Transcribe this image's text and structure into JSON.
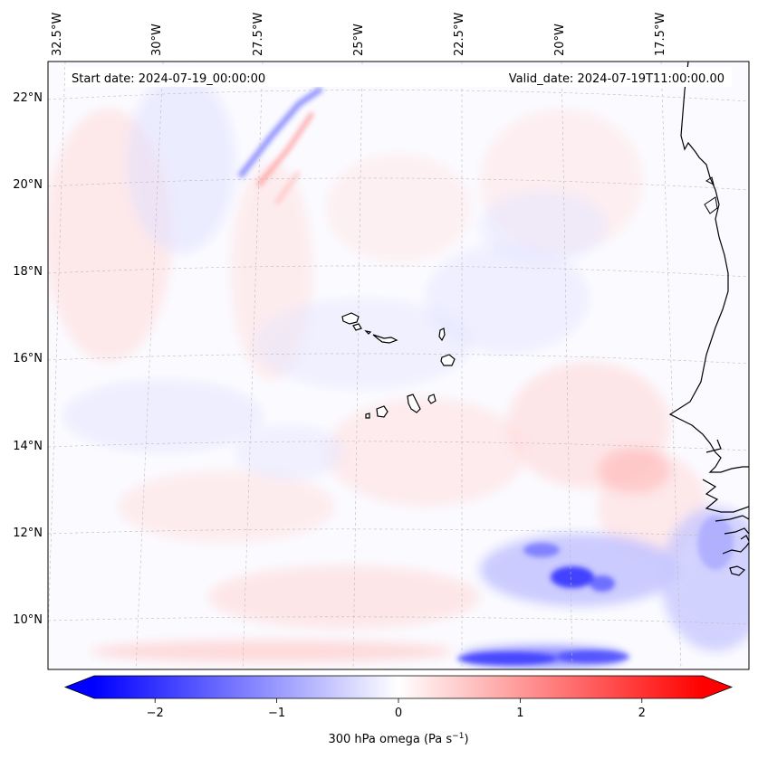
{
  "map": {
    "start_date_label": "Start date: 2024-07-19_00:00:00",
    "valid_date_label": "Valid_date: 2024-07-19T11:00:00.00",
    "top_longitude_labels": [
      "32.5°W",
      "30°W",
      "27.5°W",
      "25°W",
      "22.5°W",
      "20°W",
      "17.5°W"
    ],
    "left_latitude_labels": [
      "22°N",
      "20°N",
      "18°N",
      "16°N",
      "14°N",
      "12°N",
      "10°N"
    ],
    "colorbar": {
      "ticks": [
        "−2",
        "−1",
        "0",
        "1",
        "2"
      ],
      "tick_values": [
        -2,
        -1,
        0,
        1,
        2
      ],
      "range": [
        -2.5,
        2.5
      ],
      "label": "300 hPa omega (Pa s",
      "label_superscript": "−1",
      "label_suffix": ")",
      "cmap": "bwr"
    },
    "colors": {
      "negative": "#0000ff",
      "neutral": "#ffffff",
      "positive": "#ff0000",
      "coastline": "#000000",
      "gridline": "#bbbbbb"
    }
  }
}
